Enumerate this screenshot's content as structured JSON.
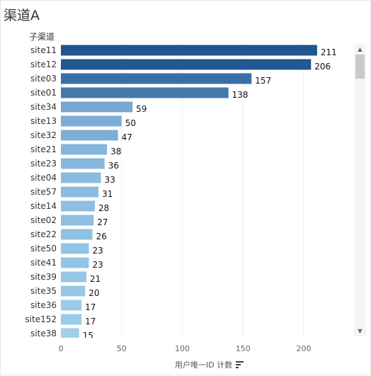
{
  "title": "渠道A",
  "row_header": "子渠道",
  "x_axis_title": "用户唯一ID 计数",
  "sort_icon": "sort-descending-icon",
  "scrollbar": {
    "up_arrow": "▲",
    "down_arrow": "▼"
  },
  "chart_data": {
    "type": "bar",
    "orientation": "horizontal",
    "xlabel": "用户唯一ID 计数",
    "ylabel": "子渠道",
    "xlim": [
      0,
      240
    ],
    "xticks": [
      0,
      50,
      100,
      150,
      200
    ],
    "grid": true,
    "color_scale": [
      "#9fcfed",
      "#1f5591"
    ],
    "categories": [
      "site11",
      "site12",
      "site03",
      "site01",
      "site34",
      "site13",
      "site32",
      "site21",
      "site23",
      "site04",
      "site57",
      "site14",
      "site02",
      "site22",
      "site50",
      "site41",
      "site39",
      "site35",
      "site36",
      "site152",
      "site38"
    ],
    "values": [
      211,
      206,
      157,
      138,
      59,
      50,
      47,
      38,
      36,
      33,
      31,
      28,
      27,
      26,
      23,
      23,
      21,
      20,
      17,
      17,
      15
    ]
  }
}
